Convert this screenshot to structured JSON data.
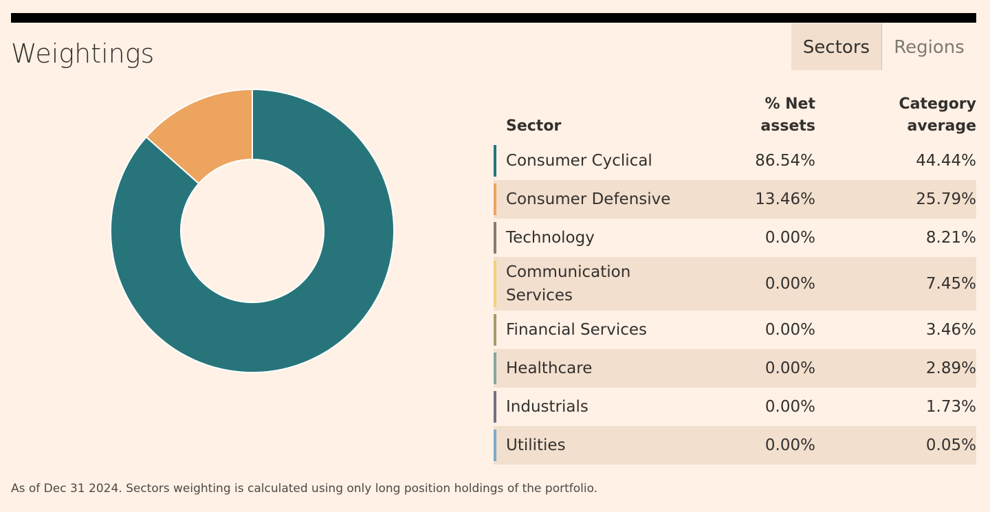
{
  "chart_data": {
    "type": "donut",
    "title": "Weightings",
    "tabs": [
      "Sectors",
      "Regions"
    ],
    "columns": [
      "Sector",
      "% Net assets",
      "Category average"
    ],
    "categories": [
      "Consumer Cyclical",
      "Consumer Defensive",
      "Technology",
      "Communication Services",
      "Financial Services",
      "Healthcare",
      "Industrials",
      "Utilities"
    ],
    "colors": [
      "#27757b",
      "#eda45e",
      "#8a7a66",
      "#f0d27e",
      "#a39c6a",
      "#86a5a0",
      "#766e82",
      "#7aaac8"
    ],
    "values": [
      86.54,
      13.46,
      0,
      0,
      0,
      0,
      0,
      0
    ],
    "value_labels": [
      "86.54%",
      "13.46%",
      "0.00%",
      "0.00%",
      "0.00%",
      "0.00%",
      "0.00%",
      "0.00%"
    ],
    "category_average": [
      "44.44%",
      "25.79%",
      "8.21%",
      "7.45%",
      "3.46%",
      "2.89%",
      "1.73%",
      "0.05%"
    ],
    "footnote": "As of Dec 31 2024. Sectors weighting is calculated using only long position holdings of the portfolio."
  }
}
